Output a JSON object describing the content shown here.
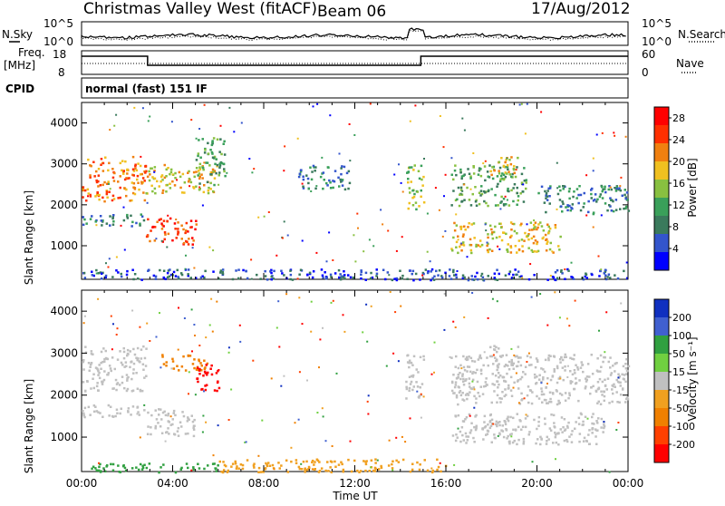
{
  "header": {
    "station": "Christmas Valley West (fitACF)",
    "beam": "Beam 06",
    "date": "17/Aug/2012",
    "nsky_label": "N.Sky",
    "nsearch_label": "N.Search",
    "freq_label": "Freq.",
    "freq_unit": "[MHz]",
    "nave_label": "Nave",
    "cpid_label": "CPID",
    "cpid_value": "normal (fast) 151 IF",
    "noise_ticks_left": [
      "10^5",
      "10^0"
    ],
    "noise_ticks_right": [
      "10^5",
      "10^0"
    ],
    "freq_ticks": [
      "18",
      "8"
    ],
    "nave_ticks": [
      "60",
      "0"
    ]
  },
  "colors": {
    "power": [
      "#0000ff",
      "#3355cc",
      "#3a7a5c",
      "#3aa05a",
      "#88c040",
      "#f0c020",
      "#f08010",
      "#ff3000",
      "#ff0000"
    ],
    "velocity": [
      "#1030c0",
      "#4060d0",
      "#30a040",
      "#70d040",
      "#c0c0c0",
      "#f0a020",
      "#f08000",
      "#ff4000",
      "#ff0000"
    ]
  },
  "chart_data": [
    {
      "type": "heatmap",
      "title": "",
      "ylabel": "Slant Range [km]",
      "ylim": [
        180,
        4500
      ],
      "yticks": [
        "1000",
        "2000",
        "3000",
        "4000"
      ],
      "colorbar_label": "Power [dB]",
      "colorbar_ticks": [
        "4",
        "8",
        "12",
        "16",
        "20",
        "24",
        "28"
      ],
      "vlim": [
        0,
        30
      ],
      "regions": [
        {
          "t": [
            0.0,
            2.8
          ],
          "r": [
            2100,
            3200
          ],
          "level": 22
        },
        {
          "t": [
            0.0,
            2.8
          ],
          "r": [
            1500,
            1800
          ],
          "level": 6
        },
        {
          "t": [
            2.8,
            5.0
          ],
          "r": [
            1050,
            1700
          ],
          "level": 27
        },
        {
          "t": [
            2.8,
            6.0
          ],
          "r": [
            2300,
            3000
          ],
          "level": 18
        },
        {
          "t": [
            5.0,
            6.3
          ],
          "r": [
            2500,
            3700
          ],
          "level": 12
        },
        {
          "t": [
            9.5,
            11.8
          ],
          "r": [
            2400,
            3000
          ],
          "level": 6
        },
        {
          "t": [
            14.2,
            15.0
          ],
          "r": [
            1900,
            3000
          ],
          "level": 16
        },
        {
          "t": [
            16.2,
            19.5
          ],
          "r": [
            2000,
            3000
          ],
          "level": 12
        },
        {
          "t": [
            17.9,
            19.2
          ],
          "r": [
            2700,
            3200
          ],
          "level": 20
        },
        {
          "t": [
            16.2,
            21.0
          ],
          "r": [
            850,
            1600
          ],
          "level": 18
        },
        {
          "t": [
            20.0,
            24.0
          ],
          "r": [
            1800,
            2500
          ],
          "level": 6
        },
        {
          "t": [
            0.0,
            24.0
          ],
          "r": [
            180,
            450
          ],
          "level": 5
        }
      ]
    },
    {
      "type": "heatmap",
      "title": "",
      "ylabel": "Slant Range [km]",
      "ylim": [
        180,
        4500
      ],
      "yticks": [
        "1000",
        "2000",
        "3000",
        "4000"
      ],
      "colorbar_label": "Velocity [m s⁻¹]",
      "colorbar_ticks": [
        "200",
        "100",
        "50",
        "15",
        "-15",
        "-50",
        "-100",
        "-200"
      ],
      "vlim": [
        -250,
        250
      ],
      "regions": [
        {
          "t": [
            0.0,
            2.8
          ],
          "r": [
            2100,
            3200
          ],
          "v": 0
        },
        {
          "t": [
            0.0,
            2.8
          ],
          "r": [
            1500,
            1800
          ],
          "v": 0
        },
        {
          "t": [
            2.8,
            5.0
          ],
          "r": [
            1050,
            1700
          ],
          "v": 0
        },
        {
          "t": [
            3.5,
            5.5
          ],
          "r": [
            2600,
            3000
          ],
          "v": -60
        },
        {
          "t": [
            5.0,
            6.0
          ],
          "r": [
            2100,
            2800
          ],
          "v": -220
        },
        {
          "t": [
            14.2,
            15.0
          ],
          "r": [
            1900,
            3000
          ],
          "v": 0
        },
        {
          "t": [
            16.2,
            24.0
          ],
          "r": [
            1800,
            3000
          ],
          "v": 0
        },
        {
          "t": [
            17.9,
            19.2
          ],
          "r": [
            2700,
            3200
          ],
          "v": 0
        },
        {
          "t": [
            16.2,
            23.0
          ],
          "r": [
            850,
            1600
          ],
          "v": 0
        },
        {
          "t": [
            6.0,
            16.0
          ],
          "r": [
            180,
            500
          ],
          "v": -40
        },
        {
          "t": [
            0.0,
            6.0
          ],
          "r": [
            180,
            400
          ],
          "v": 40
        }
      ]
    }
  ],
  "xaxis": {
    "label": "Time UT",
    "ticks": [
      "00:00",
      "04:00",
      "08:00",
      "12:00",
      "16:00",
      "20:00",
      "00:00"
    ],
    "range_hours": [
      0,
      24
    ]
  }
}
